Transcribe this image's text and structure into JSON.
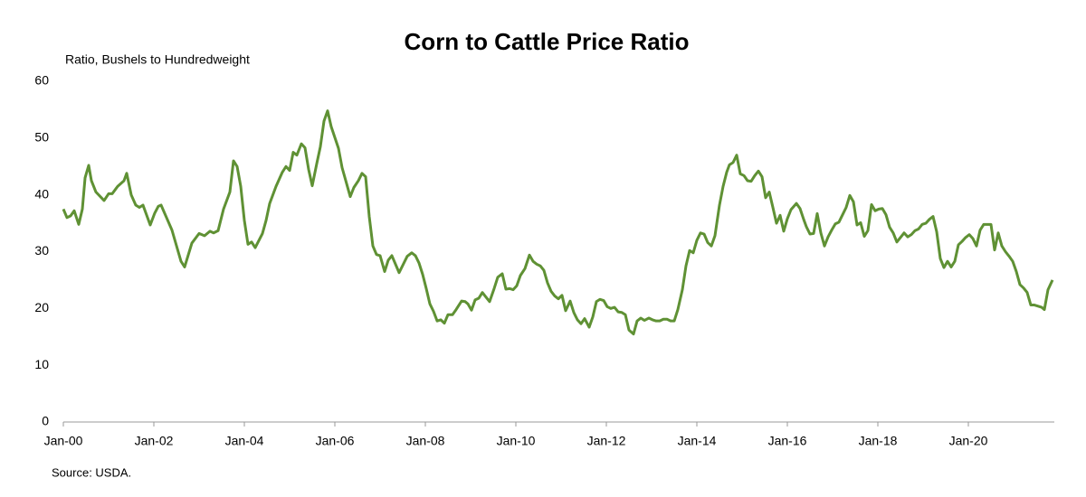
{
  "chart_data": {
    "type": "line",
    "title": "Corn to Cattle Price Ratio",
    "y_label": "Ratio, Bushels to Hundredweight",
    "source": "Source: USDA.",
    "color": "#5f9134",
    "grid": false,
    "xlim": [
      2000,
      2021.9
    ],
    "ylim": [
      0,
      60
    ],
    "yticks": [
      0,
      10,
      20,
      30,
      40,
      50,
      60
    ],
    "xticks": [
      {
        "value": 2000,
        "label": "Jan-00"
      },
      {
        "value": 2002,
        "label": "Jan-02"
      },
      {
        "value": 2004,
        "label": "Jan-04"
      },
      {
        "value": 2006,
        "label": "Jan-06"
      },
      {
        "value": 2008,
        "label": "Jan-08"
      },
      {
        "value": 2010,
        "label": "Jan-10"
      },
      {
        "value": 2012,
        "label": "Jan-12"
      },
      {
        "value": 2014,
        "label": "Jan-14"
      },
      {
        "value": 2016,
        "label": "Jan-16"
      },
      {
        "value": 2018,
        "label": "Jan-18"
      },
      {
        "value": 2020,
        "label": "Jan-20"
      }
    ],
    "x": [
      2000.0,
      2000.08,
      2000.16,
      2000.24,
      2000.34,
      2000.42,
      2000.48,
      2000.56,
      2000.62,
      2000.72,
      2000.9,
      2001.0,
      2001.08,
      2001.2,
      2001.34,
      2001.4,
      2001.5,
      2001.6,
      2001.68,
      2001.76,
      2001.92,
      2002.02,
      2002.1,
      2002.16,
      2002.28,
      2002.4,
      2002.52,
      2002.6,
      2002.68,
      2002.84,
      2003.0,
      2003.12,
      2003.24,
      2003.32,
      2003.42,
      2003.54,
      2003.68,
      2003.76,
      2003.84,
      2003.92,
      2004.0,
      2004.08,
      2004.16,
      2004.24,
      2004.4,
      2004.48,
      2004.56,
      2004.7,
      2004.84,
      2004.92,
      2005.0,
      2005.08,
      2005.16,
      2005.26,
      2005.34,
      2005.42,
      2005.5,
      2005.6,
      2005.68,
      2005.76,
      2005.84,
      2005.92,
      2006.08,
      2006.16,
      2006.34,
      2006.42,
      2006.52,
      2006.6,
      2006.68,
      2006.76,
      2006.84,
      2006.92,
      2007.0,
      2007.1,
      2007.18,
      2007.26,
      2007.42,
      2007.6,
      2007.7,
      2007.78,
      2007.86,
      2007.94,
      2008.02,
      2008.1,
      2008.18,
      2008.26,
      2008.34,
      2008.42,
      2008.5,
      2008.6,
      2008.68,
      2008.8,
      2008.88,
      2008.94,
      2009.02,
      2009.1,
      2009.18,
      2009.26,
      2009.34,
      2009.42,
      2009.52,
      2009.6,
      2009.7,
      2009.78,
      2009.86,
      2009.94,
      2010.02,
      2010.1,
      2010.2,
      2010.3,
      2010.38,
      2010.46,
      2010.54,
      2010.62,
      2010.7,
      2010.78,
      2010.86,
      2010.94,
      2011.02,
      2011.1,
      2011.2,
      2011.28,
      2011.36,
      2011.44,
      2011.52,
      2011.62,
      2011.7,
      2011.78,
      2011.86,
      2011.94,
      2012.02,
      2012.1,
      2012.18,
      2012.26,
      2012.34,
      2012.42,
      2012.5,
      2012.6,
      2012.68,
      2012.76,
      2012.84,
      2012.94,
      2013.02,
      2013.1,
      2013.18,
      2013.26,
      2013.34,
      2013.42,
      2013.5,
      2013.58,
      2013.68,
      2013.76,
      2013.84,
      2013.92,
      2014.0,
      2014.08,
      2014.16,
      2014.24,
      2014.32,
      2014.4,
      2014.5,
      2014.58,
      2014.66,
      2014.72,
      2014.8,
      2014.88,
      2014.96,
      2015.04,
      2015.12,
      2015.2,
      2015.28,
      2015.36,
      2015.44,
      2015.52,
      2015.6,
      2015.68,
      2015.76,
      2015.84,
      2015.92,
      2016.0,
      2016.08,
      2016.2,
      2016.28,
      2016.36,
      2016.42,
      2016.5,
      2016.58,
      2016.66,
      2016.74,
      2016.82,
      2016.9,
      2016.98,
      2017.06,
      2017.14,
      2017.22,
      2017.3,
      2017.38,
      2017.46,
      2017.54,
      2017.62,
      2017.7,
      2017.78,
      2017.86,
      2017.94,
      2018.02,
      2018.1,
      2018.18,
      2018.26,
      2018.34,
      2018.42,
      2018.5,
      2018.58,
      2018.66,
      2018.74,
      2018.82,
      2018.9,
      2018.98,
      2019.06,
      2019.14,
      2019.22,
      2019.3,
      2019.38,
      2019.46,
      2019.54,
      2019.62,
      2019.7,
      2019.78,
      2019.86,
      2019.94,
      2020.02,
      2020.1,
      2020.18,
      2020.26,
      2020.34,
      2020.42,
      2020.5,
      2020.58,
      2020.66,
      2020.74,
      2020.82,
      2020.9,
      2020.98,
      2021.06,
      2021.14,
      2021.22,
      2021.3,
      2021.38,
      2021.46,
      2021.54,
      2021.62,
      2021.68,
      2021.76,
      2021.86
    ],
    "values": [
      37.5,
      36,
      36.3,
      37.2,
      34.8,
      37.5,
      43,
      45.2,
      42.5,
      40.5,
      39,
      40.2,
      40.2,
      41.5,
      42.5,
      43.8,
      40,
      38.2,
      37.8,
      38.2,
      34.7,
      36.8,
      38,
      38.2,
      36,
      33.8,
      30.5,
      28.3,
      27.3,
      31.5,
      33.2,
      32.8,
      33.6,
      33.3,
      33.7,
      37.5,
      40.5,
      46,
      45,
      41.5,
      35.5,
      31.3,
      31.7,
      30.7,
      33.2,
      35.5,
      38.5,
      41.5,
      44,
      45,
      44.3,
      47.5,
      47,
      49,
      48.3,
      44.5,
      41.6,
      45.5,
      48.5,
      53,
      54.8,
      52,
      48.2,
      44.8,
      39.7,
      41.3,
      42.5,
      43.8,
      43.2,
      36.2,
      31,
      29.5,
      29.3,
      26.5,
      28.5,
      29.3,
      26.3,
      29.2,
      29.8,
      29.3,
      28,
      26,
      23.5,
      20.8,
      19.5,
      17.8,
      18,
      17.4,
      18.9,
      18.9,
      19.8,
      21.3,
      21.2,
      20.8,
      19.7,
      21.5,
      21.8,
      22.8,
      22,
      21.2,
      23.5,
      25.5,
      26.1,
      23.4,
      23.5,
      23.3,
      24,
      25.8,
      27,
      29.4,
      28.3,
      27.8,
      27.5,
      26.7,
      24.5,
      23,
      22.2,
      21.7,
      22.3,
      19.6,
      21.3,
      19.3,
      18,
      17.3,
      18.2,
      16.7,
      18.5,
      21.2,
      21.6,
      21.4,
      20.3,
      20,
      20.2,
      19.4,
      19.3,
      18.9,
      16.2,
      15.5,
      17.8,
      18.3,
      17.9,
      18.3,
      18,
      17.8,
      17.8,
      18.1,
      18.1,
      17.8,
      17.8,
      19.8,
      23.3,
      27.5,
      30.2,
      29.8,
      32,
      33.3,
      33.1,
      31.6,
      31,
      32.8,
      38.2,
      41.5,
      44,
      45.3,
      45.7,
      47,
      43.7,
      43.4,
      42.5,
      42.4,
      43.4,
      44.2,
      43.2,
      39.5,
      40.5,
      37.8,
      35,
      36.4,
      33.6,
      35.8,
      37.4,
      38.5,
      37.6,
      35.7,
      34.4,
      33.1,
      33.2,
      36.7,
      33.3,
      31,
      32.6,
      33.8,
      34.9,
      35.2,
      36.5,
      37.8,
      39.9,
      38.8,
      34.7,
      35.1,
      32.7,
      33.7,
      38.3,
      37.2,
      37.5,
      37.6,
      36.5,
      34.3,
      33.3,
      31.7,
      32.5,
      33.3,
      32.6,
      33,
      33.7,
      34,
      34.8,
      35,
      35.7,
      36.2,
      33.5,
      28.8,
      27.2,
      28.3,
      27.3,
      28.3,
      31.2,
      31.8,
      32.5,
      33,
      32.3,
      31,
      33.8,
      34.8,
      34.8,
      34.8,
      30.3,
      33.3,
      31,
      30,
      29.2,
      28.3,
      26.5,
      24.2,
      23.6,
      22.8,
      20.6,
      20.6,
      20.4,
      20.2,
      19.8,
      23.3,
      25
    ]
  }
}
